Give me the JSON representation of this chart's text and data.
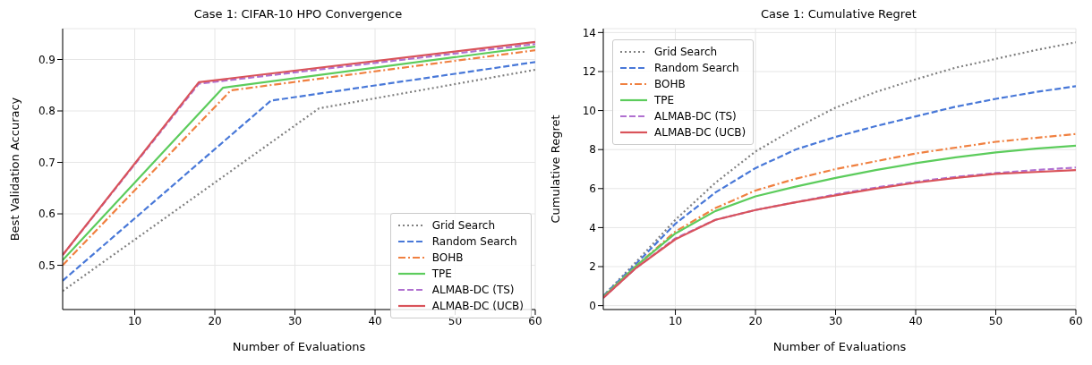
{
  "chart_data": [
    {
      "type": "line",
      "title": "Case 1: CIFAR-10 HPO Convergence",
      "xlabel": "Number of Evaluations",
      "ylabel": "Best Validation Accuracy",
      "xlim": [
        1,
        60
      ],
      "xticks": [
        10,
        20,
        30,
        40,
        50,
        60
      ],
      "ylim": [
        0.414,
        0.96
      ],
      "yticks": [
        0.5,
        0.6,
        0.7,
        0.8,
        0.9
      ],
      "grid": true,
      "legend": "bottom right",
      "marker": "none",
      "series": [
        {
          "name": "Grid Search",
          "color": "#808080",
          "line_style": "dotted",
          "x": [
            1,
            33,
            60
          ],
          "values": [
            0.45,
            0.805,
            0.88
          ]
        },
        {
          "name": "Random Search",
          "color": "#4878d8",
          "line_style": "dashed",
          "x": [
            1,
            27,
            60
          ],
          "values": [
            0.47,
            0.82,
            0.895
          ]
        },
        {
          "name": "BOHB",
          "color": "#f08040",
          "line_style": "dashdot",
          "x": [
            1,
            22,
            60
          ],
          "values": [
            0.5,
            0.84,
            0.918
          ]
        },
        {
          "name": "TPE",
          "color": "#5ccc5c",
          "line_style": "solid",
          "x": [
            1,
            21,
            60
          ],
          "values": [
            0.51,
            0.845,
            0.925
          ]
        },
        {
          "name": "ALMAB-DC (TS)",
          "color": "#b070d0",
          "line_style": "dashed",
          "x": [
            1,
            18,
            60
          ],
          "values": [
            0.52,
            0.853,
            0.93
          ]
        },
        {
          "name": "ALMAB-DC (UCB)",
          "color": "#d9535a",
          "line_style": "solid",
          "x": [
            1,
            18,
            60
          ],
          "values": [
            0.52,
            0.856,
            0.934
          ]
        }
      ]
    },
    {
      "type": "line",
      "title": "Case 1: Cumulative Regret",
      "xlabel": "Number of Evaluations",
      "ylabel": "Cumulative Regret",
      "xlim": [
        1,
        60
      ],
      "xticks": [
        10,
        20,
        30,
        40,
        50,
        60
      ],
      "ylim": [
        -0.2,
        14.2
      ],
      "yticks": [
        0,
        2,
        4,
        6,
        8,
        10,
        12,
        14
      ],
      "grid": true,
      "legend": "top left",
      "marker": "none",
      "x": [
        1,
        5,
        10,
        15,
        20,
        25,
        30,
        35,
        40,
        45,
        50,
        55,
        60
      ],
      "series": [
        {
          "name": "Grid Search",
          "color": "#808080",
          "line_style": "dotted",
          "values": [
            0.5,
            2.2,
            4.4,
            6.3,
            7.9,
            9.1,
            10.15,
            10.95,
            11.6,
            12.2,
            12.65,
            13.1,
            13.5
          ]
        },
        {
          "name": "Random Search",
          "color": "#4878d8",
          "line_style": "dashed",
          "values": [
            0.5,
            2.1,
            4.2,
            5.8,
            7.05,
            8.0,
            8.65,
            9.2,
            9.7,
            10.2,
            10.6,
            10.95,
            11.25
          ]
        },
        {
          "name": "BOHB",
          "color": "#f08040",
          "line_style": "dashdot",
          "values": [
            0.45,
            2.0,
            3.8,
            5.0,
            5.9,
            6.5,
            7.0,
            7.4,
            7.8,
            8.1,
            8.4,
            8.6,
            8.8
          ]
        },
        {
          "name": "TPE",
          "color": "#5ccc5c",
          "line_style": "solid",
          "values": [
            0.45,
            2.0,
            3.7,
            4.85,
            5.6,
            6.1,
            6.55,
            6.95,
            7.3,
            7.6,
            7.85,
            8.05,
            8.2
          ]
        },
        {
          "name": "ALMAB-DC (TS)",
          "color": "#b070d0",
          "line_style": "dashed",
          "values": [
            0.4,
            1.9,
            3.45,
            4.4,
            4.9,
            5.3,
            5.7,
            6.05,
            6.35,
            6.6,
            6.8,
            6.95,
            7.08
          ]
        },
        {
          "name": "ALMAB-DC (UCB)",
          "color": "#d9535a",
          "line_style": "solid",
          "values": [
            0.4,
            1.9,
            3.4,
            4.4,
            4.9,
            5.3,
            5.65,
            6.0,
            6.3,
            6.55,
            6.75,
            6.85,
            6.95
          ]
        }
      ]
    }
  ]
}
